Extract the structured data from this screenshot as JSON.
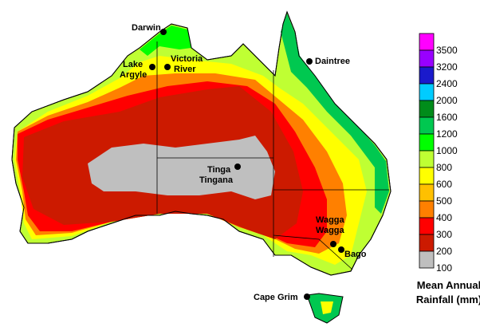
{
  "map": {
    "places": [
      {
        "name": "Darwin"
      },
      {
        "name": "Lake Argyle",
        "lines": [
          "Lake",
          "Argyle"
        ]
      },
      {
        "name": "Victoria River",
        "lines": [
          "Victoria",
          "River"
        ]
      },
      {
        "name": "Daintree"
      },
      {
        "name": "Tinga Tingana",
        "lines": [
          "Tinga",
          "Tingana"
        ]
      },
      {
        "name": "Wagga Wagga",
        "lines": [
          "Wagga",
          "Wagga"
        ]
      },
      {
        "name": "Bago"
      },
      {
        "name": "Cape Grim"
      }
    ]
  },
  "legend": {
    "title_line1": "Mean Annual",
    "title_line2": "Rainfall (mm)",
    "labels": [
      "3500",
      "3200",
      "2400",
      "2000",
      "1600",
      "1200",
      "1000",
      "800",
      "600",
      "500",
      "400",
      "300",
      "200",
      "100"
    ],
    "colors": [
      "#ff00ff",
      "#9900ff",
      "#1a1acc",
      "#00ccff",
      "#008c1a",
      "#00c850",
      "#00ff00",
      "#bfff33",
      "#ffff00",
      "#ffc000",
      "#ff8000",
      "#ff0000",
      "#cc1a00",
      "#bfbfbf"
    ]
  }
}
